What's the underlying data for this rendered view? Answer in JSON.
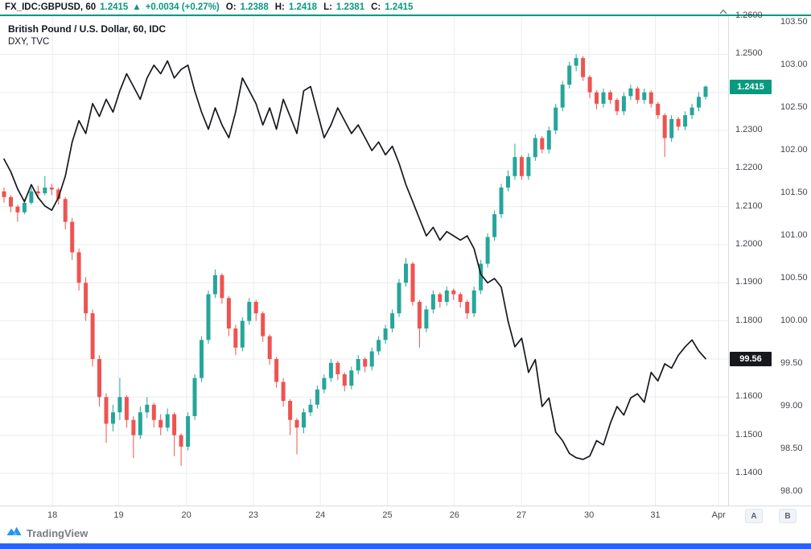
{
  "colors": {
    "accent": "#089981",
    "up": "#26a69a",
    "down": "#ef5350",
    "dxy_line": "#16181d",
    "grid": "#e9ecf2",
    "axis_text": "#44474f",
    "banner": "#2962ff",
    "logo_blue": "#2196f3"
  },
  "header": {
    "symbol": "FX_IDC:GBPUSD, 60",
    "last": "1.2415",
    "arrow": "▲",
    "change": "+0.0034 (+0.27%)",
    "o_label": "O:",
    "o": "1.2388",
    "h_label": "H:",
    "h": "1.2418",
    "l_label": "L:",
    "l": "1.2381",
    "c_label": "C:",
    "c": "1.2415"
  },
  "legend": {
    "line1": "British Pound / U.S. Dollar, 60, IDC",
    "line2": "DXY, TVC"
  },
  "footer": {
    "brand": "TradingView"
  },
  "scale_buttons": {
    "a": "A",
    "b": "B"
  },
  "chart_data": {
    "type": "candlestick",
    "title": "British Pound / U.S. Dollar, 60, IDC",
    "overlay_series": "DXY, TVC (black line, US Dollar Index overlay)",
    "legend_position": "top-left",
    "grid": "on",
    "x_ticks": [
      {
        "label": "18",
        "f": 0.072
      },
      {
        "label": "19",
        "f": 0.163
      },
      {
        "label": "20",
        "f": 0.256
      },
      {
        "label": "23",
        "f": 0.348
      },
      {
        "label": "24",
        "f": 0.44
      },
      {
        "label": "25",
        "f": 0.532
      },
      {
        "label": "26",
        "f": 0.624
      },
      {
        "label": "27",
        "f": 0.716
      },
      {
        "label": "30",
        "f": 0.809
      },
      {
        "label": "31",
        "f": 0.9
      },
      {
        "label": "Apr",
        "f": 0.987
      }
    ],
    "right_axis": {
      "gbp_ticks": [
        "1.2600",
        "1.2500",
        "1.2400",
        "1.2300",
        "1.2200",
        "1.2100",
        "1.2000",
        "1.1900",
        "1.1800",
        "1.1700",
        "1.1600",
        "1.1500",
        "1.1400"
      ],
      "dxy_ticks": [
        "103.50",
        "103.00",
        "102.50",
        "102.00",
        "101.50",
        "101.00",
        "100.50",
        "100.00",
        "99.50",
        "99.00",
        "98.50",
        "98.00"
      ],
      "gbp_badge": 1.2415,
      "gbp_badge_label": "1.2415",
      "dxy_badge": 99.56,
      "dxy_badge_label": "99.56"
    },
    "gbp_scale": {
      "min": 1.1315,
      "max": 1.2613
    },
    "dxy_scale": {
      "min": 97.84,
      "max": 103.63
    },
    "gbpusd_ohlc": [
      [
        1.214,
        1.215,
        1.211,
        1.2125
      ],
      [
        1.2125,
        1.213,
        1.2085,
        1.21
      ],
      [
        1.21,
        1.2105,
        1.206,
        1.2085
      ],
      [
        1.2085,
        1.212,
        1.208,
        1.211
      ],
      [
        1.211,
        1.215,
        1.2105,
        1.214
      ],
      [
        1.214,
        1.2155,
        1.212,
        1.2135
      ],
      [
        1.2135,
        1.218,
        1.213,
        1.215
      ],
      [
        1.215,
        1.216,
        1.213,
        1.2145
      ],
      [
        1.2145,
        1.215,
        1.2105,
        1.212
      ],
      [
        1.212,
        1.2125,
        1.204,
        1.206
      ],
      [
        1.206,
        1.207,
        1.196,
        1.198
      ],
      [
        1.198,
        1.199,
        1.188,
        1.19
      ],
      [
        1.19,
        1.1915,
        1.18,
        1.182
      ],
      [
        1.182,
        1.183,
        1.168,
        1.17
      ],
      [
        1.17,
        1.171,
        1.1575,
        1.16
      ],
      [
        1.16,
        1.161,
        1.148,
        1.153
      ],
      [
        1.153,
        1.158,
        1.151,
        1.156
      ],
      [
        1.156,
        1.165,
        1.154,
        1.16
      ],
      [
        1.16,
        1.1605,
        1.152,
        1.154
      ],
      [
        1.154,
        1.155,
        1.144,
        1.15
      ],
      [
        1.15,
        1.1575,
        1.149,
        1.156
      ],
      [
        1.156,
        1.16,
        1.1545,
        1.158
      ],
      [
        1.158,
        1.1585,
        1.152,
        1.154
      ],
      [
        1.154,
        1.1555,
        1.15,
        1.152
      ],
      [
        1.152,
        1.157,
        1.151,
        1.1555
      ],
      [
        1.1555,
        1.156,
        1.1445,
        1.15
      ],
      [
        1.15,
        1.1505,
        1.142,
        1.147
      ],
      [
        1.147,
        1.156,
        1.146,
        1.155
      ],
      [
        1.155,
        1.166,
        1.154,
        1.165
      ],
      [
        1.165,
        1.176,
        1.164,
        1.175
      ],
      [
        1.175,
        1.188,
        1.174,
        1.187
      ],
      [
        1.187,
        1.1935,
        1.186,
        1.192
      ],
      [
        1.192,
        1.1925,
        1.1845,
        1.186
      ],
      [
        1.186,
        1.1865,
        1.176,
        1.178
      ],
      [
        1.178,
        1.179,
        1.171,
        1.173
      ],
      [
        1.173,
        1.181,
        1.172,
        1.18
      ],
      [
        1.18,
        1.186,
        1.179,
        1.185
      ],
      [
        1.185,
        1.1855,
        1.18,
        1.182
      ],
      [
        1.182,
        1.1825,
        1.1745,
        1.176
      ],
      [
        1.176,
        1.1765,
        1.1685,
        1.17
      ],
      [
        1.17,
        1.1705,
        1.1625,
        1.164
      ],
      [
        1.164,
        1.165,
        1.1575,
        1.159
      ],
      [
        1.159,
        1.1595,
        1.15,
        1.154
      ],
      [
        1.154,
        1.1545,
        1.145,
        1.152
      ],
      [
        1.152,
        1.157,
        1.1505,
        1.156
      ],
      [
        1.156,
        1.1595,
        1.155,
        1.158
      ],
      [
        1.158,
        1.163,
        1.157,
        1.162
      ],
      [
        1.162,
        1.166,
        1.161,
        1.165
      ],
      [
        1.165,
        1.17,
        1.164,
        1.169
      ],
      [
        1.169,
        1.1695,
        1.1645,
        1.166
      ],
      [
        1.166,
        1.1665,
        1.1615,
        1.163
      ],
      [
        1.163,
        1.168,
        1.162,
        1.167
      ],
      [
        1.167,
        1.171,
        1.166,
        1.17
      ],
      [
        1.17,
        1.1705,
        1.1665,
        1.168
      ],
      [
        1.168,
        1.173,
        1.167,
        1.172
      ],
      [
        1.172,
        1.176,
        1.171,
        1.175
      ],
      [
        1.175,
        1.179,
        1.174,
        1.178
      ],
      [
        1.178,
        1.183,
        1.177,
        1.182
      ],
      [
        1.182,
        1.191,
        1.181,
        1.19
      ],
      [
        1.19,
        1.1965,
        1.189,
        1.195
      ],
      [
        1.195,
        1.1955,
        1.184,
        1.185
      ],
      [
        1.185,
        1.1855,
        1.173,
        1.178
      ],
      [
        1.178,
        1.184,
        1.177,
        1.183
      ],
      [
        1.183,
        1.188,
        1.182,
        1.187
      ],
      [
        1.187,
        1.1875,
        1.1835,
        1.185
      ],
      [
        1.185,
        1.189,
        1.184,
        1.188
      ],
      [
        1.188,
        1.1885,
        1.1855,
        1.187
      ],
      [
        1.187,
        1.1875,
        1.1835,
        1.185
      ],
      [
        1.185,
        1.1855,
        1.1805,
        1.182
      ],
      [
        1.182,
        1.189,
        1.181,
        1.188
      ],
      [
        1.188,
        1.196,
        1.187,
        1.195
      ],
      [
        1.195,
        1.203,
        1.194,
        1.202
      ],
      [
        1.202,
        1.209,
        1.201,
        1.208
      ],
      [
        1.208,
        1.216,
        1.207,
        1.215
      ],
      [
        1.215,
        1.2195,
        1.214,
        1.218
      ],
      [
        1.218,
        1.2265,
        1.217,
        1.223
      ],
      [
        1.223,
        1.2235,
        1.217,
        1.218
      ],
      [
        1.218,
        1.224,
        1.217,
        1.223
      ],
      [
        1.223,
        1.229,
        1.222,
        1.228
      ],
      [
        1.228,
        1.2285,
        1.224,
        1.225
      ],
      [
        1.225,
        1.231,
        1.224,
        1.23
      ],
      [
        1.23,
        1.237,
        1.229,
        1.236
      ],
      [
        1.236,
        1.243,
        1.235,
        1.242
      ],
      [
        1.242,
        1.248,
        1.241,
        1.247
      ],
      [
        1.247,
        1.25,
        1.2455,
        1.249
      ],
      [
        1.249,
        1.2495,
        1.243,
        1.244
      ],
      [
        1.244,
        1.2445,
        1.2385,
        1.24
      ],
      [
        1.24,
        1.2405,
        1.2355,
        1.237
      ],
      [
        1.237,
        1.241,
        1.236,
        1.24
      ],
      [
        1.24,
        1.2405,
        1.237,
        1.238
      ],
      [
        1.238,
        1.2385,
        1.234,
        1.235
      ],
      [
        1.235,
        1.24,
        1.234,
        1.239
      ],
      [
        1.239,
        1.242,
        1.238,
        1.241
      ],
      [
        1.241,
        1.2415,
        1.237,
        1.238
      ],
      [
        1.238,
        1.241,
        1.237,
        1.24
      ],
      [
        1.24,
        1.2405,
        1.236,
        1.237
      ],
      [
        1.237,
        1.2375,
        1.233,
        1.234
      ],
      [
        1.234,
        1.2345,
        1.223,
        1.228
      ],
      [
        1.228,
        1.234,
        1.227,
        1.233
      ],
      [
        1.233,
        1.2335,
        1.23,
        1.231
      ],
      [
        1.231,
        1.235,
        1.23,
        1.234
      ],
      [
        1.234,
        1.237,
        1.233,
        1.236
      ],
      [
        1.236,
        1.24,
        1.235,
        1.2388
      ],
      [
        1.2388,
        1.2418,
        1.2381,
        1.2415
      ]
    ],
    "dxy_values": [
      101.9,
      101.75,
      101.55,
      101.4,
      101.6,
      101.45,
      101.35,
      101.3,
      101.45,
      101.7,
      102.1,
      102.35,
      102.2,
      102.55,
      102.4,
      102.6,
      102.45,
      102.7,
      102.9,
      102.75,
      102.6,
      102.85,
      103.0,
      102.9,
      103.05,
      102.85,
      102.95,
      103.0,
      102.7,
      102.45,
      102.25,
      102.5,
      102.3,
      102.15,
      102.45,
      102.85,
      102.7,
      102.55,
      102.3,
      102.5,
      102.25,
      102.6,
      102.4,
      102.2,
      102.7,
      102.75,
      102.45,
      102.15,
      102.3,
      102.5,
      102.35,
      102.2,
      102.3,
      102.15,
      102.0,
      102.1,
      101.95,
      102.05,
      101.85,
      101.6,
      101.4,
      101.2,
      101.0,
      101.1,
      100.95,
      101.05,
      101.0,
      100.95,
      101.0,
      100.85,
      100.55,
      100.45,
      100.5,
      100.4,
      100.0,
      99.7,
      99.8,
      99.4,
      99.55,
      99.0,
      99.1,
      98.7,
      98.6,
      98.45,
      98.4,
      98.38,
      98.42,
      98.6,
      98.55,
      98.8,
      99.0,
      98.9,
      99.1,
      99.15,
      99.05,
      99.4,
      99.3,
      99.5,
      99.45,
      99.6,
      99.7,
      99.78,
      99.65,
      99.56
    ]
  }
}
